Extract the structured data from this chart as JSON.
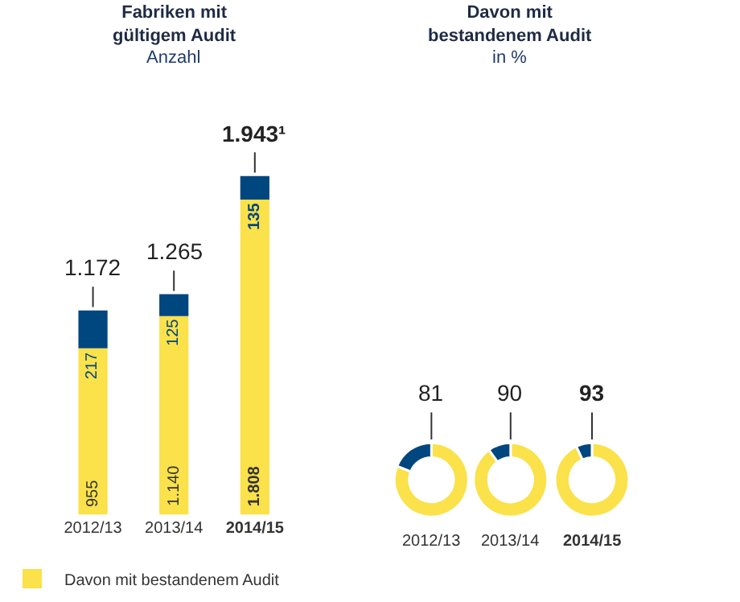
{
  "chart_data": [
    {
      "type": "bar",
      "title": "Fabriken mit gültigem Audit",
      "subtitle": "Anzahl",
      "categories": [
        "2012/13",
        "2013/14",
        "2014/15"
      ],
      "stacked": true,
      "legend": "bottom left",
      "totals": [
        "1.172",
        "1.265",
        "1.943¹"
      ],
      "series": [
        {
          "name": "Davon mit bestandenem Audit",
          "color": "#fbe14a",
          "values": [
            955,
            1140,
            1808
          ],
          "value_labels": [
            "955",
            "1.140",
            "1.808"
          ]
        },
        {
          "color": "#00467f",
          "values": [
            217,
            125,
            135
          ],
          "value_labels": [
            "217",
            "125",
            "135"
          ]
        }
      ]
    },
    {
      "type": "donut",
      "categories": [
        null,
        null
      ],
      "values": [
        81,
        19
      ],
      "colors": [
        "#fbe14a",
        "#00467f"
      ],
      "annotations": [
        "81"
      ],
      "xlabel": "2012/13"
    },
    {
      "type": "donut",
      "title": "Davon mit bestandenem Audit",
      "subtitle": "in %",
      "categories": [
        null,
        null
      ],
      "values": [
        90,
        10
      ],
      "colors": [
        "#fbe14a",
        "#00467f"
      ],
      "annotations": [
        "90"
      ],
      "xlabel": "2013/14"
    },
    {
      "type": "donut",
      "categories": [
        null,
        null
      ],
      "values": [
        93,
        7
      ],
      "colors": [
        "#fbe14a",
        "#00467f"
      ],
      "annotations": [
        "93"
      ],
      "xlabel": "2014/15"
    }
  ]
}
